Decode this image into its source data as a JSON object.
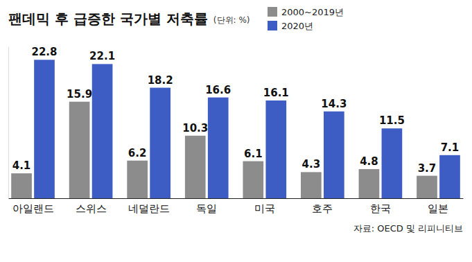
{
  "chart_data": {
    "type": "bar",
    "title": "팬데믹 후 급증한 국가별 저축률",
    "subtitle": "(단위: %)",
    "categories": [
      "아일랜드",
      "스위스",
      "네덜란드",
      "독일",
      "미국",
      "호주",
      "한국",
      "일본"
    ],
    "series": [
      {
        "name": "2000~2019년",
        "color": "#8c8c8c",
        "values": [
          4.1,
          15.9,
          6.2,
          10.3,
          6.1,
          4.3,
          4.8,
          3.7
        ]
      },
      {
        "name": "2020년",
        "color": "#3d5cc4",
        "values": [
          22.8,
          22.1,
          18.2,
          16.6,
          16.1,
          14.3,
          11.5,
          7.1
        ]
      }
    ],
    "ylim": [
      0,
      25
    ],
    "data_labels": true,
    "tick_labels": "x",
    "grid": false,
    "legend": "top",
    "annotations": [
      "자료: OECD 및 리피니티브"
    ]
  }
}
